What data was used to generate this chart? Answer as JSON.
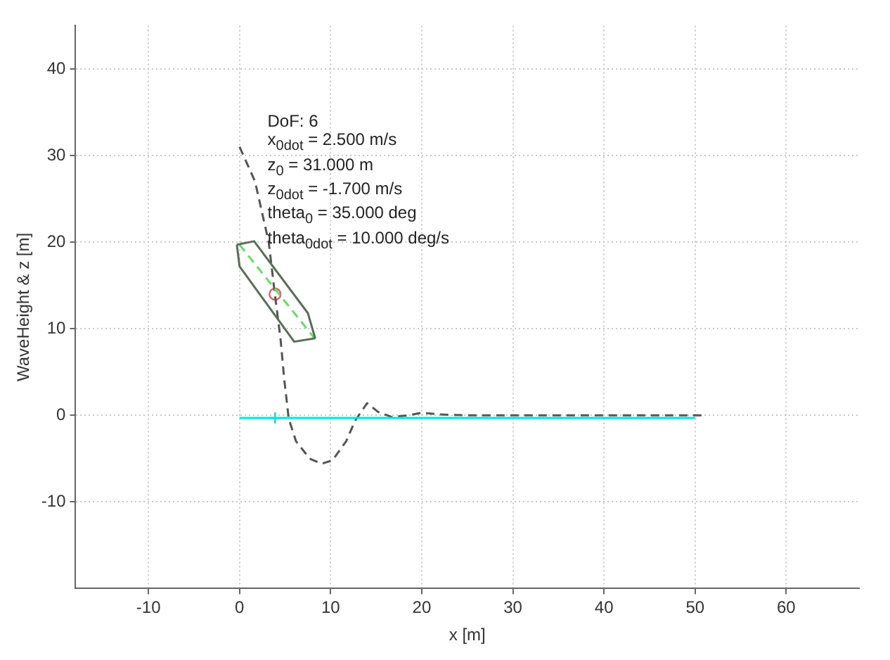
{
  "chart_data": {
    "type": "line",
    "xlabel": "x [m]",
    "ylabel": "WaveHeight & z [m]",
    "xlim": [
      -18,
      68
    ],
    "ylim": [
      -20,
      45
    ],
    "xticks": [
      -10,
      0,
      10,
      20,
      30,
      40,
      50,
      60
    ],
    "yticks": [
      -10,
      0,
      10,
      20,
      30,
      40
    ],
    "grid": true,
    "annotations": [
      "DoF: 6",
      "x$_{0dot}$ = 2.500 m/s",
      "z$_{0}$ = 31.000 m",
      "z$_{0dot}$ = -1.700 m/s",
      "theta$_{0}$ = 35.000 deg",
      "theta$_{0dot}$ = 10.000 deg/s"
    ],
    "series": [
      {
        "type": "line",
        "color": "#00e5e5",
        "line_style": "solid",
        "marker": "none",
        "x": [
          0,
          50
        ],
        "values": [
          -0.3,
          -0.3
        ]
      },
      {
        "type": "line",
        "color": "#5a6e5a",
        "line_style": "solid",
        "marker": "none",
        "x": [
          -0.3,
          1.6,
          7.5,
          8.3
        ],
        "values": [
          19.7,
          20.1,
          11.8,
          8.9
        ]
      },
      {
        "type": "line",
        "color": "#5a6e5a",
        "line_style": "solid",
        "marker": "none",
        "x": [
          -0.3,
          0,
          6,
          8.3
        ],
        "values": [
          19.7,
          17.2,
          8.5,
          8.9
        ]
      },
      {
        "type": "line",
        "color": "#66dd66",
        "line_style": "dashed",
        "marker": "none",
        "x": [
          0,
          8.3
        ],
        "values": [
          19.7,
          8.8
        ]
      },
      {
        "type": "line",
        "color": "#555555",
        "line_style": "dashed",
        "marker": "none",
        "x": [
          0,
          1.7,
          3.2,
          3.9,
          4.5,
          4.9,
          5.4,
          6.2,
          7.7,
          9,
          10.2,
          11.7,
          12.7,
          14,
          15.2,
          16.7,
          18.5,
          20,
          22,
          25,
          30,
          40,
          51
        ],
        "values": [
          31,
          27,
          20,
          13.8,
          8.8,
          4.2,
          -0.4,
          -3,
          -5,
          -5.6,
          -5.2,
          -3,
          -0.6,
          1.4,
          0.4,
          -0.2,
          0,
          0.3,
          0.1,
          0,
          0,
          0,
          0
        ]
      },
      {
        "type": "scatter",
        "color": "#e06060",
        "marker": "circle",
        "x": [
          3.9
        ],
        "values": [
          14
        ]
      },
      {
        "type": "scatter",
        "color": "#20d0d0",
        "marker": "cross",
        "x": [
          3.9
        ],
        "values": [
          -0.3
        ]
      }
    ]
  }
}
